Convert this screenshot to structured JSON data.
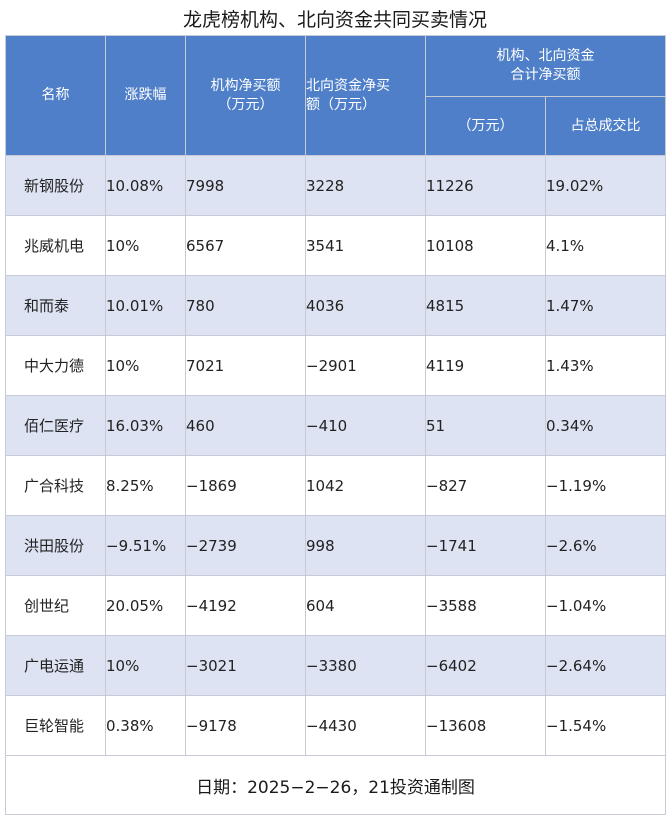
{
  "title": "龙虎榜机构、北向资金共同买卖情况",
  "header": {
    "name": "名称",
    "change": "涨跌幅",
    "inst_line1": "机构净买额",
    "inst_line2": "（万元）",
    "north_line1": "北向资金净买",
    "north_line2": "额（万元）",
    "combined_line1": "机构、北向资金",
    "combined_line2": "合计净买额",
    "combined_unit": "（万元）",
    "ratio": "占总成交比"
  },
  "rows": [
    {
      "name": "新钢股份",
      "change": "10.08%",
      "inst": "7998",
      "north": "3228",
      "total": "11226",
      "ratio": "19.02%"
    },
    {
      "name": "兆威机电",
      "change": "10%",
      "inst": "6567",
      "north": "3541",
      "total": "10108",
      "ratio": "4.1%"
    },
    {
      "name": "和而泰",
      "change": "10.01%",
      "inst": "780",
      "north": "4036",
      "total": "4815",
      "ratio": "1.47%"
    },
    {
      "name": "中大力德",
      "change": "10%",
      "inst": "7021",
      "north": "−2901",
      "total": "4119",
      "ratio": "1.43%"
    },
    {
      "name": "佰仁医疗",
      "change": "16.03%",
      "inst": "460",
      "north": "−410",
      "total": "51",
      "ratio": "0.34%"
    },
    {
      "name": "广合科技",
      "change": "8.25%",
      "inst": "−1869",
      "north": "1042",
      "total": "−827",
      "ratio": "−1.19%"
    },
    {
      "name": "洪田股份",
      "change": "−9.51%",
      "inst": "−2739",
      "north": "998",
      "total": "−1741",
      "ratio": "−2.6%"
    },
    {
      "name": "创世纪",
      "change": "20.05%",
      "inst": "−4192",
      "north": "604",
      "total": "−3588",
      "ratio": "−1.04%"
    },
    {
      "name": "广电运通",
      "change": "10%",
      "inst": "−3021",
      "north": "−3380",
      "total": "−6402",
      "ratio": "−2.64%"
    },
    {
      "name": "巨轮智能",
      "change": "0.38%",
      "inst": "−9178",
      "north": "−4430",
      "total": "−13608",
      "ratio": "−1.54%"
    }
  ],
  "footer": "日期：2025−2−26，21投资通制图"
}
